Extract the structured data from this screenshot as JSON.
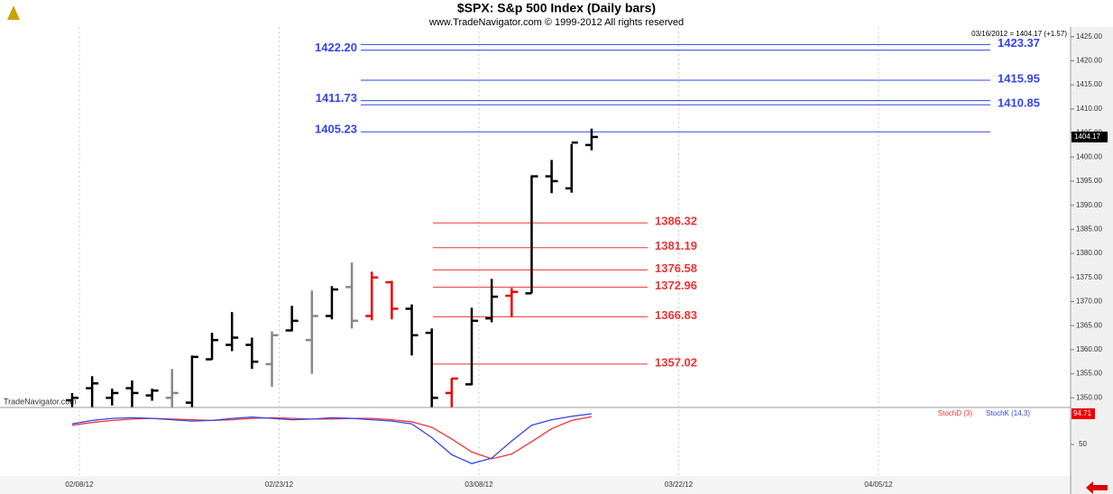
{
  "chart_data": {
    "type": "ohlc",
    "title": "$SPX:  S&p 500 Index  (Daily bars)",
    "subtitle": "www.TradeNavigator.com © 1999-2012 All rights reserved",
    "annotation": "03/16/2012 = 1404.17 (+1.57)",
    "watermark": "TradeNavigator.com",
    "categories": [
      "02/08/12",
      null,
      null,
      null,
      null,
      null,
      null,
      null,
      null,
      null,
      "02/23/12",
      null,
      null,
      null,
      null,
      null,
      null,
      null,
      null,
      null,
      "03/08/12",
      null,
      null,
      null,
      null,
      null,
      null,
      null,
      null,
      null,
      "03/22/12",
      null,
      null,
      null,
      null,
      null,
      null,
      null,
      null,
      null,
      "04/05/12"
    ],
    "open": [
      1349.5,
      1352,
      1350,
      1352,
      1350.5,
      1350,
      1349,
      1358,
      1361,
      1361,
      1357,
      1364,
      1362,
      1367,
      1373,
      1367,
      1374,
      1368.5,
      1363.5,
      1351,
      1352.8,
      1366.5,
      1371.2,
      1371.7,
      1396,
      1393.5,
      1402.5,
      null,
      null,
      null,
      null,
      null,
      null,
      null,
      null,
      null,
      null,
      null,
      null,
      null,
      null
    ],
    "high": [
      1351,
      1354.5,
      1351.9,
      1353.6,
      1351.9,
      1356,
      1358.8,
      1363.5,
      1367.8,
      1362.5,
      1363.8,
      1369.1,
      1372.3,
      1373.2,
      1378.1,
      1376.2,
      1374.3,
      1369.4,
      1364.4,
      1354.1,
      1368.7,
      1374.7,
      1372.8,
      1396.2,
      1399.4,
      1402.7,
      1405.9,
      null,
      null,
      null,
      null,
      null,
      null,
      null,
      null,
      null,
      null,
      null,
      null,
      null,
      null
    ],
    "low": [
      1348.1,
      1348.1,
      1348.4,
      1348.1,
      1349.4,
      1348.1,
      1348.1,
      1357.9,
      1359.7,
      1356,
      1352.3,
      1363.8,
      1355,
      1366.3,
      1364.4,
      1366.1,
      1366.3,
      1358.8,
      1348.1,
      1348.1,
      1352.6,
      1365.7,
      1366.8,
      1371.7,
      1392.5,
      1392.6,
      1401.4,
      null,
      null,
      null,
      null,
      null,
      null,
      null,
      null,
      null,
      null,
      null,
      null,
      null,
      null
    ],
    "close": [
      1350,
      1353,
      1351,
      1351,
      1351.5,
      1351,
      1358.5,
      1362,
      1362.5,
      1357.5,
      1363,
      1366,
      1367,
      1372.5,
      1366,
      1375,
      1368.5,
      1363,
      1350,
      1354,
      1366,
      1371,
      1372,
      1396,
      1395,
      1403,
      1404.17,
      null,
      null,
      null,
      null,
      null,
      null,
      null,
      null,
      null,
      null,
      null,
      null,
      null,
      null
    ],
    "colors": [
      "#000",
      "#000",
      "#000",
      "#000",
      "#000",
      "#888",
      "#000",
      "#000",
      "#000",
      "#000",
      "#888",
      "#000",
      "#888",
      "#000",
      "#888",
      "#e00",
      "#e00",
      "#000",
      "#000",
      "#e00",
      "#000",
      "#000",
      "#e00",
      "#000",
      "#000",
      "#000",
      "#000",
      null,
      null,
      null,
      null,
      null,
      null,
      null,
      null,
      null,
      null,
      null,
      null,
      null,
      null
    ],
    "ylim": [
      1348,
      1427
    ],
    "yticks": [
      {
        "value": 1350,
        "label": "1350.00"
      },
      {
        "value": 1355,
        "label": "1355.00"
      },
      {
        "value": 1360,
        "label": "1360.00"
      },
      {
        "value": 1365,
        "label": "1365.00"
      },
      {
        "value": 1370,
        "label": "1370.00"
      },
      {
        "value": 1375,
        "label": "1375.00"
      },
      {
        "value": 1380,
        "label": "1380.00"
      },
      {
        "value": 1385,
        "label": "1385.00"
      },
      {
        "value": 1390,
        "label": "1390.00"
      },
      {
        "value": 1395,
        "label": "1395.00"
      },
      {
        "value": 1400,
        "label": "1400.00"
      },
      {
        "value": 1405,
        "label": "1405.00"
      },
      {
        "value": 1410,
        "label": "1410.00"
      },
      {
        "value": 1415,
        "label": "1415.00"
      },
      {
        "value": 1420,
        "label": "1420.00"
      },
      {
        "value": 1425,
        "label": "1425.00"
      }
    ],
    "blue_levels": {
      "color": "#3344ee",
      "values": [
        1423.37,
        1422.2,
        1415.95,
        1411.73,
        1410.85,
        1405.23
      ],
      "value_labels": [
        "1423.37",
        "1422.20",
        "1415.95",
        "1411.73",
        "1410.85",
        "1405.23"
      ]
    },
    "red_levels": {
      "color": "#ee3333",
      "values": [
        1386.32,
        1381.19,
        1376.58,
        1372.96,
        1366.83,
        1357.02
      ],
      "value_labels": [
        "1386.32",
        "1381.19",
        "1376.58",
        "1372.96",
        "1366.83",
        "1357.02"
      ]
    },
    "indicator": {
      "ylim": [
        0,
        100
      ],
      "yticks": [
        50
      ],
      "series": [
        {
          "name": "StochD (3)",
          "color": "#ee3333",
          "values": [
            78,
            82,
            85,
            87,
            88,
            87,
            86,
            85,
            86,
            88,
            89,
            88,
            87,
            87,
            88,
            88,
            86,
            83,
            75,
            58,
            39,
            29,
            36,
            54,
            73,
            85,
            90.5,
            null,
            null,
            null,
            null,
            null,
            null,
            null,
            null,
            null,
            null,
            null,
            null,
            null,
            null
          ]
        },
        {
          "name": "StochK (14,3)",
          "color": "#3344ee",
          "values": [
            80,
            85,
            88,
            89,
            88,
            86,
            84,
            85,
            88,
            90,
            88,
            86,
            87,
            89,
            88,
            86,
            84,
            80,
            60,
            35,
            22,
            30,
            55,
            78,
            86,
            91,
            94.71,
            null,
            null,
            null,
            null,
            null,
            null,
            null,
            null,
            null,
            null,
            null,
            null,
            null,
            null
          ]
        }
      ]
    }
  }
}
